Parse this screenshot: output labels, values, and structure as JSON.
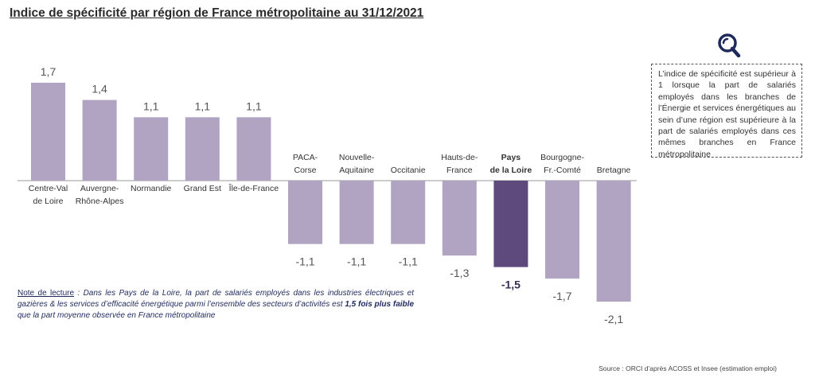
{
  "title": "Indice de spécificité par région de France métropolitaine au 31/12/2021",
  "info_box": {
    "icon": "magnifier-search-icon",
    "text": "L’indice de spécificité est supérieur à 1 lorsque la part de salariés employés dans les branches de l’Énergie et services énergétiques au sein d’une région est supérieure à la part de salariés employés dans ces mêmes branches en France métropolitaine"
  },
  "note": {
    "label": "Note de lecture",
    "text_before": " : Dans les Pays de la Loire, la part de salariés employés dans les industries électriques et gazières & les services d’efficacité énergétique  parmi l’ensemble des secteurs d’activités est ",
    "emphasis": "1,5 fois plus faible",
    "text_after": " que la part moyenne observée en France métropolitaine"
  },
  "source": "Source : ORCI d’après ACOSS et Insee (estimation emploi)",
  "colors": {
    "bar": "#b1a4c2",
    "highlight": "#5e4a7c",
    "axis": "#999999"
  },
  "chart_data": {
    "type": "bar",
    "categories": [
      [
        "Centre-Val",
        "de Loire"
      ],
      [
        "Auvergne-",
        "Rhône-Alpes"
      ],
      [
        "Normandie"
      ],
      [
        "Grand Est"
      ],
      [
        "Île-de-France"
      ],
      [
        "PACA-",
        "Corse"
      ],
      [
        "Nouvelle-",
        "Aquitaine"
      ],
      [
        "Occitanie"
      ],
      [
        "Hauts-de-",
        "France"
      ],
      [
        "Pays",
        "de la Loire"
      ],
      [
        "Bourgogne-",
        "Fr.-Comté"
      ],
      [
        "Bretagne"
      ]
    ],
    "values": [
      1.7,
      1.4,
      1.1,
      1.1,
      1.1,
      -1.1,
      -1.1,
      -1.1,
      -1.3,
      -1.5,
      -1.7,
      -2.1
    ],
    "data_labels": [
      "1,7",
      "1,4",
      "1,1",
      "1,1",
      "1,1",
      "-1,1",
      "-1,1",
      "-1,1",
      "-1,3",
      "-1,5",
      "-1,7",
      "-2,1"
    ],
    "highlight": "Pays de la Loire",
    "xlabel": "",
    "ylabel": ""
  }
}
